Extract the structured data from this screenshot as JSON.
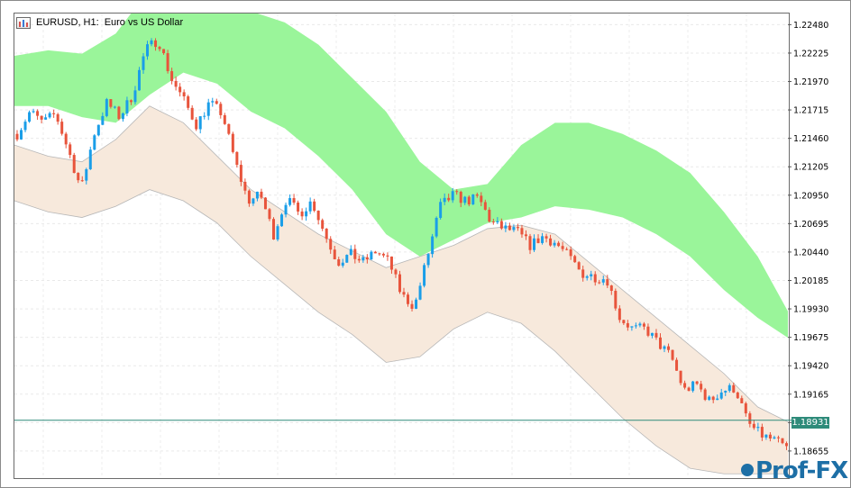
{
  "header": {
    "symbol": "EURUSD, H1:",
    "description": "Euro vs US Dollar"
  },
  "current_price": "1.18931",
  "watermark": "Prof-FX",
  "chart_data": {
    "type": "candlestick",
    "title": "EURUSD, H1:  Euro vs US Dollar",
    "y_tick_labels": [
      "1.22480",
      "1.22225",
      "1.21970",
      "1.21715",
      "1.21460",
      "1.21205",
      "1.20950",
      "1.20695",
      "1.20440",
      "1.20185",
      "1.19930",
      "1.19675",
      "1.19420",
      "1.19165",
      "1.18910",
      "1.18655"
    ],
    "ylim": [
      1.1842,
      1.2258
    ],
    "grid": true,
    "horizontal_line": 1.18931,
    "colors": {
      "bull": "#1a9ee8",
      "bear": "#e8543c",
      "green_cloud": "#9af59a",
      "beige_band": "#f7e9dc",
      "band_line": "#b7b7b7",
      "price_line": "#2e8b7a"
    },
    "close_path": [
      1.215,
      1.217,
      1.216,
      1.2168,
      1.2135,
      1.21,
      1.215,
      1.2178,
      1.2165,
      1.2185,
      1.2225,
      1.2235,
      1.22,
      1.218,
      1.2158,
      1.2178,
      1.2168,
      1.2125,
      1.209,
      1.2095,
      1.206,
      1.2092,
      1.2078,
      1.209,
      1.206,
      1.2035,
      1.2042,
      1.2035,
      1.2045,
      1.2035,
      1.2005,
      1.1995,
      1.204,
      1.2085,
      1.2095,
      1.209,
      1.2092,
      1.207,
      1.2065,
      1.2062,
      1.205,
      1.2058,
      1.2052,
      1.204,
      1.2025,
      1.2022,
      1.202,
      1.1985,
      1.1975,
      1.1975,
      1.1962,
      1.195,
      1.192,
      1.1925,
      1.191,
      1.192,
      1.1922,
      1.189,
      1.188,
      1.1875,
      1.1868
    ],
    "cloud_top": [
      1.222,
      1.2225,
      1.2222,
      1.224,
      1.228,
      1.23,
      1.2285,
      1.226,
      1.225,
      1.223,
      1.22,
      1.217,
      1.2125,
      1.21,
      1.2105,
      1.214,
      1.216,
      1.216,
      1.215,
      1.2135,
      1.2115,
      1.208,
      1.204,
      1.1985
    ],
    "cloud_bottom": [
      1.2175,
      1.2175,
      1.2165,
      1.216,
      1.2185,
      1.2205,
      1.2195,
      1.217,
      1.2155,
      1.213,
      1.21,
      1.206,
      1.204,
      1.2055,
      1.207,
      1.2075,
      1.2085,
      1.2082,
      1.2075,
      1.206,
      1.204,
      1.201,
      1.1985,
      1.1965
    ],
    "band_upper": [
      1.214,
      1.213,
      1.2125,
      1.2145,
      1.2175,
      1.216,
      1.213,
      1.21,
      1.208,
      1.206,
      1.2045,
      1.203,
      1.204,
      1.205,
      1.2065,
      1.2068,
      1.206,
      1.2035,
      1.201,
      1.1985,
      1.196,
      1.1935,
      1.1905,
      1.189
    ],
    "band_lower": [
      1.209,
      1.208,
      1.2075,
      1.2085,
      1.21,
      1.209,
      1.207,
      1.204,
      1.2015,
      1.199,
      1.197,
      1.1945,
      1.195,
      1.1975,
      1.199,
      1.198,
      1.1955,
      1.1925,
      1.1895,
      1.187,
      1.185,
      1.1845,
      1.1845,
      1.1845
    ]
  }
}
